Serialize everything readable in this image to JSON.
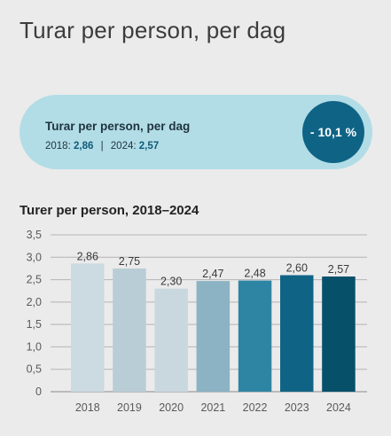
{
  "page_title": "Turar per person, per dag",
  "kpi": {
    "title": "Turar per person, per dag",
    "label_2018": "2018:",
    "value_2018": "2,86",
    "separator": "|",
    "label_2024": "2024:",
    "value_2024": "2,57",
    "change": "- 10,1 %",
    "pill_color": "#b2dde6",
    "badge_color": "#0f6486"
  },
  "chart_data": {
    "type": "bar",
    "title": "Turer per person, 2018–2024",
    "xlabel": "",
    "ylabel": "",
    "categories": [
      "2018",
      "2019",
      "2020",
      "2021",
      "2022",
      "2023",
      "2024"
    ],
    "values": [
      2.86,
      2.75,
      2.3,
      2.47,
      2.48,
      2.6,
      2.57
    ],
    "value_labels": [
      "2,86",
      "2,75",
      "2,30",
      "2,47",
      "2,48",
      "2,60",
      "2,57"
    ],
    "ylim": [
      0,
      3.5
    ],
    "yticks": [
      0,
      0.5,
      1.0,
      1.5,
      2.0,
      2.5,
      3.0,
      3.5
    ],
    "ytick_labels": [
      "0",
      "0,5",
      "1,0",
      "1,5",
      "2,0",
      "2,5",
      "3,0",
      "3,5"
    ],
    "grid": true,
    "bar_colors": [
      "#ccdae1",
      "#b9cdd6",
      "#c9d7de",
      "#8bb3c4",
      "#2e84a3",
      "#0f6486",
      "#07506a"
    ]
  }
}
